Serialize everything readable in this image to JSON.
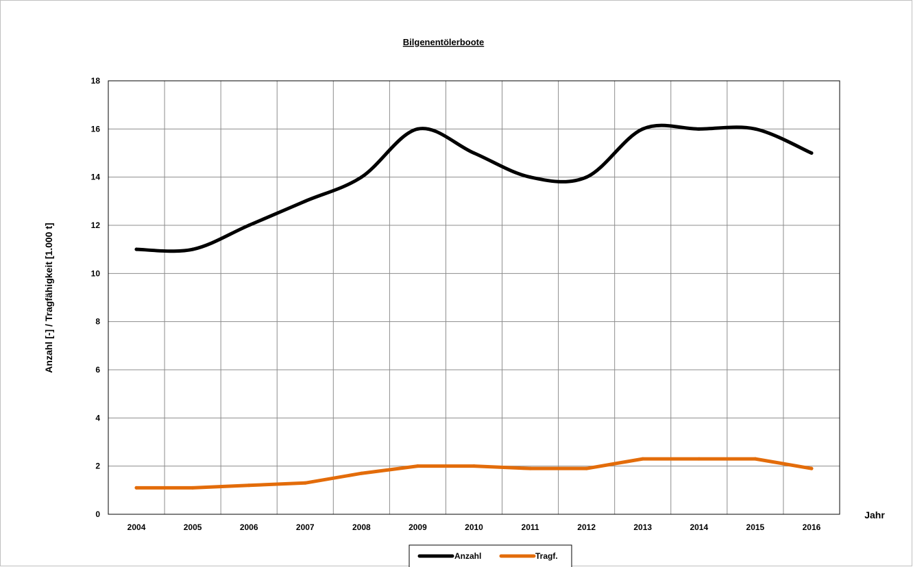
{
  "chart_data": {
    "type": "line",
    "title": "Bilgenentölerboote",
    "xlabel": "Jahr",
    "ylabel": "Anzahl [-] / Tragfähigkeit [1.000 t]",
    "categories": [
      "2004",
      "2005",
      "2006",
      "2007",
      "2008",
      "2009",
      "2010",
      "2011",
      "2012",
      "2013",
      "2014",
      "2015",
      "2016"
    ],
    "ylim": [
      0,
      18
    ],
    "yticks": [
      "0",
      "2",
      "4",
      "6",
      "8",
      "10",
      "12",
      "14",
      "16",
      "18"
    ],
    "grid": true,
    "legend_position": "bottom",
    "series": [
      {
        "name": "Anzahl",
        "color": "#000000",
        "values": [
          11,
          11,
          12,
          13,
          14,
          16,
          15,
          14,
          14,
          16,
          16,
          16,
          15
        ],
        "smooth": true
      },
      {
        "name": "Tragf.",
        "color": "#e36c0a",
        "values": [
          1.1,
          1.1,
          1.2,
          1.3,
          1.7,
          2.0,
          2.0,
          1.9,
          1.9,
          2.3,
          2.3,
          2.3,
          1.9
        ],
        "smooth": false
      }
    ]
  }
}
